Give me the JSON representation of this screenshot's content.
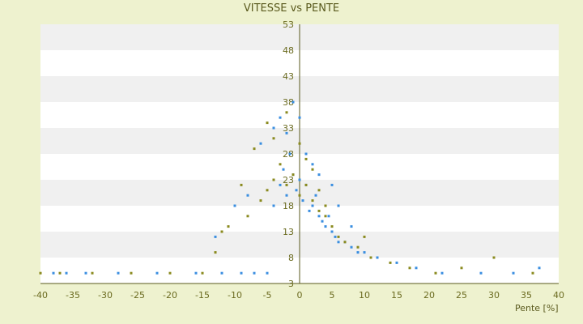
{
  "chart_data": {
    "type": "scatter",
    "title": "VITESSE vs PENTE",
    "xlabel": "Pente [%]",
    "ylabel": "",
    "xlim": [
      -40,
      40
    ],
    "ylim": [
      3,
      53
    ],
    "x_ticks": [
      -40,
      -35,
      -30,
      -25,
      -20,
      -15,
      -10,
      -5,
      0,
      5,
      10,
      15,
      20,
      25,
      30,
      35,
      40
    ],
    "y_ticks": [
      3,
      8,
      13,
      18,
      23,
      28,
      33,
      38,
      43,
      48,
      53
    ],
    "grid": "horizontal bands",
    "series": [
      {
        "color": "#3a8ee0",
        "x": [
          -38,
          -36,
          -33,
          -28,
          -22,
          -16,
          -12,
          -9,
          -7,
          -5,
          -4,
          -3,
          -2.5,
          -2,
          -1.5,
          -1,
          -0.5,
          0,
          0.5,
          1,
          1.5,
          2,
          2.5,
          3,
          3.5,
          4,
          4.5,
          5,
          5.5,
          6,
          7,
          8,
          9,
          10,
          12,
          15,
          18,
          22,
          28,
          33,
          37,
          -6,
          -4,
          -3,
          -2,
          -1,
          0,
          1,
          2,
          3,
          -8,
          -10,
          -13,
          5,
          6,
          8
        ],
        "y": [
          5,
          5,
          5,
          5,
          5,
          5,
          5,
          5,
          5,
          5,
          18,
          22,
          25,
          20,
          28,
          24,
          21,
          23,
          19,
          22,
          17,
          18,
          20,
          16,
          15,
          14,
          16,
          13,
          12,
          11,
          11,
          10,
          9,
          9,
          8,
          7,
          6,
          5,
          5,
          5,
          6,
          30,
          33,
          35,
          32,
          38,
          35,
          28,
          26,
          24,
          20,
          18,
          12,
          22,
          18,
          14
        ]
      },
      {
        "color": "#8a8a1e",
        "x": [
          -40,
          -37,
          -32,
          -26,
          -20,
          -15,
          -13,
          -11,
          -8,
          -6,
          -5,
          -4,
          -3,
          -2,
          -1,
          0,
          1,
          2,
          3,
          4,
          5,
          6,
          7,
          9,
          11,
          14,
          17,
          21,
          25,
          30,
          36,
          -7,
          -5,
          -4,
          -2,
          0,
          1,
          2,
          -9,
          -12,
          3,
          4,
          10
        ],
        "y": [
          5,
          5,
          5,
          5,
          5,
          5,
          9,
          14,
          16,
          19,
          21,
          23,
          26,
          22,
          24,
          20,
          22,
          19,
          17,
          16,
          14,
          12,
          11,
          10,
          8,
          7,
          6,
          5,
          6,
          8,
          5,
          29,
          34,
          31,
          36,
          30,
          27,
          25,
          22,
          13,
          21,
          18,
          12
        ]
      }
    ]
  }
}
